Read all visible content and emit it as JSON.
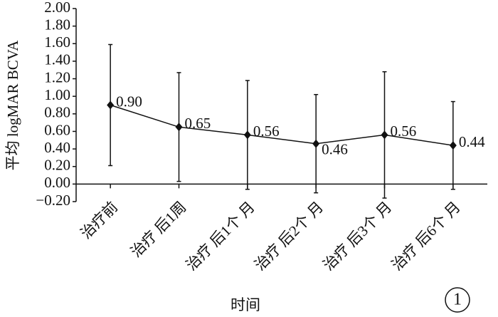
{
  "chart_data": {
    "type": "line",
    "y_label": "平均 logMAR BCVA",
    "x_label": "时间",
    "annotation": "1",
    "categories": [
      "治疗前",
      "治疗 后1周",
      "治疗 后1个 月",
      "治疗 后2个 月",
      "治疗 后3个 月",
      "治疗 后6个 月"
    ],
    "values": [
      0.9,
      0.65,
      0.56,
      0.46,
      0.56,
      0.44
    ],
    "value_labels": [
      "0.90",
      "0.65",
      "0.56",
      "0.46",
      "0.56",
      "0.44"
    ],
    "errors": [
      0.69,
      0.62,
      0.62,
      0.56,
      0.72,
      0.5
    ],
    "color": "#111111",
    "ylim": [
      -0.2,
      2.0
    ],
    "yticks": [
      {
        "value": -0.2,
        "label": "−0.20"
      },
      {
        "value": 0,
        "label": "0.00"
      },
      {
        "value": 0.2,
        "label": "0.20"
      },
      {
        "value": 0.4,
        "label": "0.40"
      },
      {
        "value": 0.6,
        "label": "0.60"
      },
      {
        "value": 0.8,
        "label": "0.80"
      },
      {
        "value": 1.0,
        "label": "1.00"
      },
      {
        "value": 1.2,
        "label": "1.20"
      },
      {
        "value": 1.4,
        "label": "1.40"
      },
      {
        "value": 1.6,
        "label": "1.60"
      },
      {
        "value": 1.8,
        "label": "1.80"
      },
      {
        "value": 2.0,
        "label": "2.00"
      }
    ]
  }
}
